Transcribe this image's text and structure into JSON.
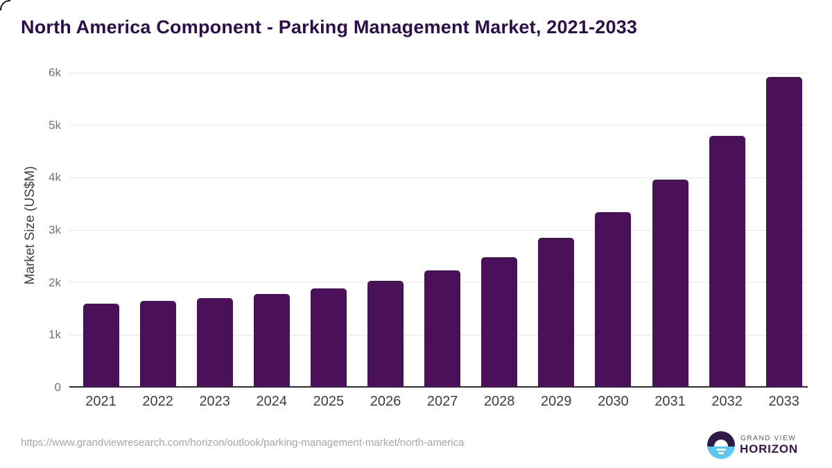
{
  "title": "North America Component - Parking Management Market, 2021-2033",
  "chart_data": {
    "type": "bar",
    "categories": [
      "2021",
      "2022",
      "2023",
      "2024",
      "2025",
      "2026",
      "2027",
      "2028",
      "2029",
      "2030",
      "2031",
      "2032",
      "2033"
    ],
    "values": [
      1600,
      1650,
      1700,
      1790,
      1890,
      2040,
      2230,
      2490,
      2850,
      3340,
      3960,
      4800,
      5915
    ],
    "title": "North America Component - Parking Management Market, 2021-2033",
    "xlabel": "",
    "ylabel": "Market Size (US$M)",
    "ylim": [
      0,
      6000
    ],
    "yticks": [
      0,
      1000,
      2000,
      3000,
      4000,
      5000,
      6000
    ],
    "ytick_labels": [
      "0",
      "1k",
      "2k",
      "3k",
      "4k",
      "5k",
      "6k"
    ],
    "grid": true,
    "legend": "none",
    "bar_color": "#4a1059"
  },
  "footer": {
    "source_url": "https://www.grandviewresearch.com/horizon/outlook/parking-management-market/north-america",
    "logo": {
      "line1": "GRAND VIEW",
      "line2": "HORIZON"
    }
  },
  "colors": {
    "title_text": "#2e0d4c",
    "bar": "#4a1059",
    "axis_line": "#2d2d2d",
    "gridline": "#e7e7e7",
    "y_tick_text": "#717171",
    "x_tick_text": "#3d3d3d",
    "url_text": "#a6a6a6",
    "logo_purple": "#2e1a47",
    "logo_blue": "#5bc6f0"
  }
}
